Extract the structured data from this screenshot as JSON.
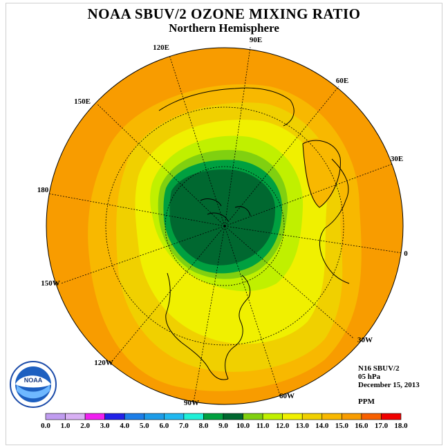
{
  "title": "NOAA SBUV/2 OZONE MIXING RATIO",
  "subtitle": "Northern Hemisphere",
  "meridian_labels": {
    "e90": "90E",
    "e60": "60E",
    "e30": "30E",
    "lon0": "0",
    "w30": "30W",
    "w60": "60W",
    "w90": "90W",
    "w120": "120W",
    "w150": "150W",
    "lon180": "180",
    "e150": "150E",
    "e120": "120E"
  },
  "info": {
    "instrument": "N16 SBUV/2",
    "level": "05 hPa",
    "date": "December 15, 2013",
    "units": "PPM"
  },
  "colorbar": {
    "labels": [
      "0.0",
      "1.0",
      "2.0",
      "3.0",
      "4.0",
      "5.0",
      "6.0",
      "7.0",
      "8.0",
      "9.0",
      "10.0",
      "11.0",
      "12.0",
      "13.0",
      "14.0",
      "15.0",
      "16.0",
      "17.0",
      "18.0"
    ],
    "colors": [
      "#c09cf0",
      "#d8b0f4",
      "#f020f0",
      "#2222e8",
      "#1c7ee8",
      "#1c9ce8",
      "#20b8f0",
      "#20f0d8",
      "#00a040",
      "#006830",
      "#80d010",
      "#c0f000",
      "#f0f000",
      "#f0d000",
      "#f8b800",
      "#f89c00",
      "#f86000",
      "#f00000",
      "#8c5c38"
    ]
  },
  "logo_text": "NOAA"
}
